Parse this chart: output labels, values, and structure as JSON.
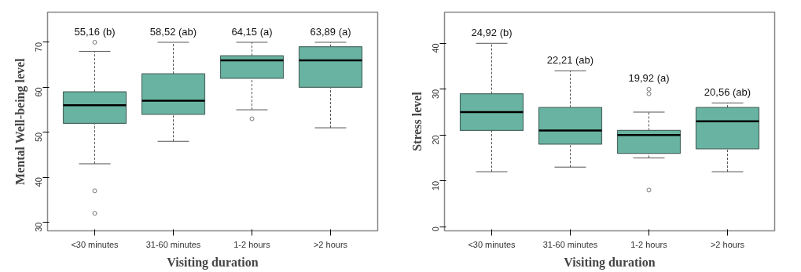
{
  "chart_data": [
    {
      "type": "box",
      "xlabel": "Visiting duration",
      "ylabel": "Mental Well-being level",
      "categories": [
        "<30 minutes",
        "31-60 minutes",
        "1-2 hours",
        ">2 hours"
      ],
      "color": "#69b3a2",
      "ylim": [
        28.1,
        76.7
      ],
      "yticks": [
        30,
        40,
        50,
        60,
        70
      ],
      "grid": false,
      "boxes": [
        {
          "low": 43,
          "q1": 52,
          "median": 56,
          "q3": 59,
          "high": 68,
          "outliers": [
            70,
            37,
            32
          ]
        },
        {
          "low": 48,
          "q1": 54,
          "median": 57,
          "q3": 63,
          "high": 70
        },
        {
          "low": 55,
          "q1": 62,
          "median": 66,
          "q3": 67,
          "high": 70,
          "outliers": [
            53
          ]
        },
        {
          "low": 51,
          "q1": 60,
          "median": 66,
          "q3": 69,
          "high": 70
        }
      ],
      "annotations": [
        "55,16 (b)",
        "58,52 (ab)",
        "64,15 (a)",
        "63,89 (a)"
      ]
    },
    {
      "type": "box",
      "xlabel": "Visiting duration",
      "ylabel": "Stress level",
      "categories": [
        "<30 minutes",
        "31-60 minutes",
        "1-2 hours",
        ">2 hours"
      ],
      "color": "#69b3a2",
      "ylim": [
        -0.9,
        46.8
      ],
      "yticks": [
        0,
        10,
        20,
        30,
        40
      ],
      "grid": false,
      "boxes": [
        {
          "low": 12,
          "q1": 21,
          "median": 25,
          "q3": 29,
          "high": 40
        },
        {
          "low": 13,
          "q1": 18,
          "median": 21,
          "q3": 26,
          "high": 34
        },
        {
          "low": 15,
          "q1": 16,
          "median": 20,
          "q3": 21,
          "high": 25,
          "outliers": [
            29,
            30,
            8
          ]
        },
        {
          "low": 12,
          "q1": 17,
          "median": 23,
          "q3": 26,
          "high": 27
        }
      ],
      "annotations": [
        "24,92 (b)",
        "22,21 (ab)",
        "19,92 (a)",
        "20,56 (ab)"
      ]
    }
  ]
}
